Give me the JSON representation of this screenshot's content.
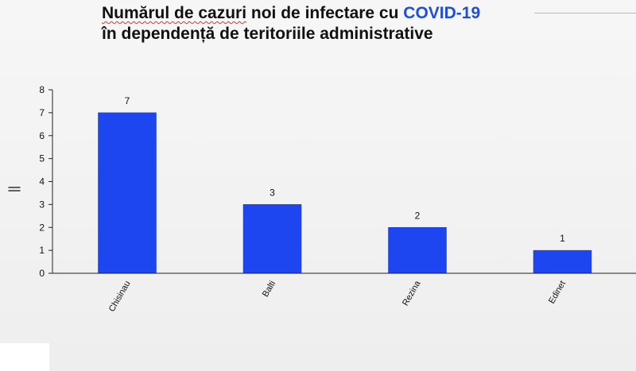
{
  "title": {
    "part1_underlined": "Numărul de cazuri",
    "part1_rest": " noi de infectare cu ",
    "part1_accent": "COVID-19",
    "line2": "în dependență de teritoriile administrative"
  },
  "colors": {
    "bar": "#1e46f0",
    "accent": "#1f4ed8",
    "spellcheck": "#e0352b"
  },
  "chart_data": {
    "type": "bar",
    "title": "Numărul de cazuri noi de infectare cu COVID-19 în dependență de teritoriile administrative",
    "categories": [
      "Chisinau",
      "Balti",
      "Rezina",
      "Edinet"
    ],
    "values": [
      7,
      3,
      2,
      1
    ],
    "data_labels": [
      "7",
      "3",
      "2",
      "1"
    ],
    "xlabel": "",
    "ylabel": "||",
    "ylim": [
      0,
      8
    ],
    "yticks": [
      "0",
      "1",
      "2",
      "3",
      "4",
      "5",
      "6",
      "7",
      "8"
    ],
    "grid": false,
    "legend": "none"
  }
}
